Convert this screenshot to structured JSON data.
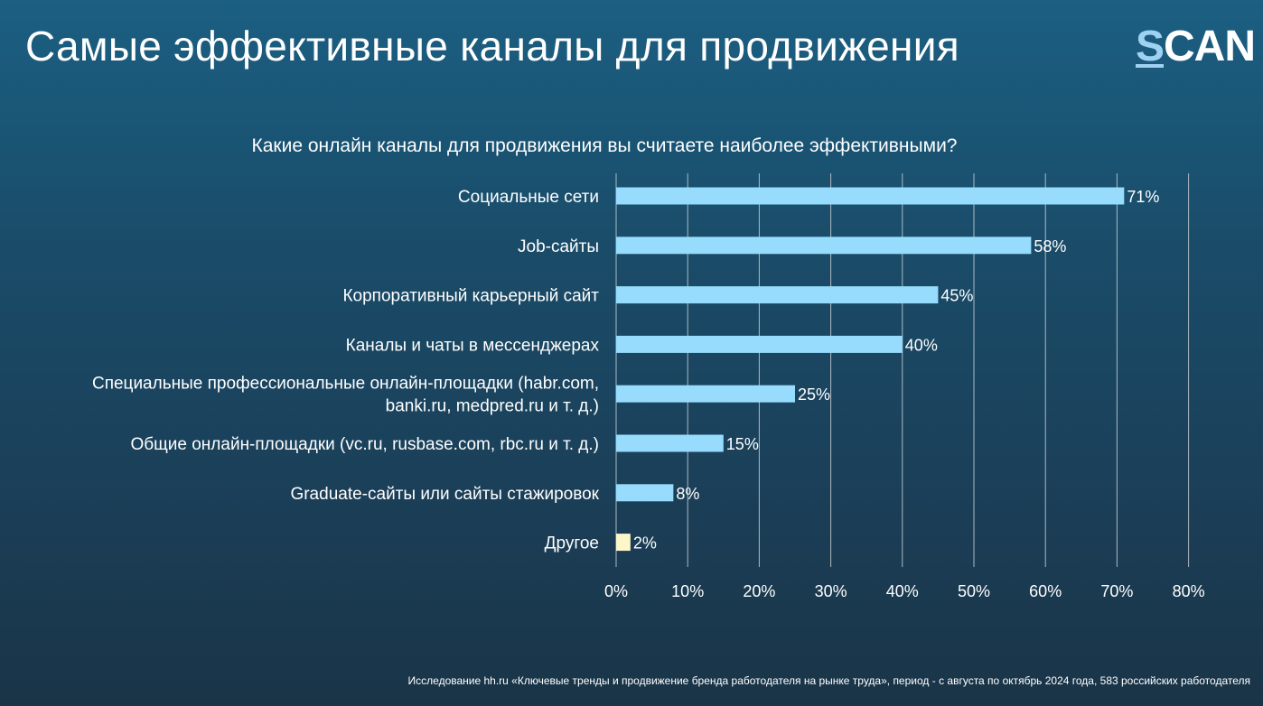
{
  "header": {
    "title": "Самые эффективные каналы для продвижения",
    "logo_first": "S",
    "logo_rest": "CAN"
  },
  "chart_data": {
    "type": "bar",
    "orientation": "horizontal",
    "title": "Какие онлайн каналы для продвижения вы считаете наиболее эффективными?",
    "categories": [
      [
        "Социальные сети"
      ],
      [
        "Job-сайты"
      ],
      [
        "Корпоративный карьерный сайт"
      ],
      [
        "Каналы и чаты в мессенджерах"
      ],
      [
        "Специальные профессиональные онлайн-площадки (habr.com,",
        "banki.ru, medpred.ru и т. д.)"
      ],
      [
        "Общие онлайн-площадки (vc.ru, rusbase.com, rbc.ru и т. д.)"
      ],
      [
        "Graduate-сайты или сайты стажировок"
      ],
      [
        "Другое"
      ]
    ],
    "values": [
      71,
      58,
      45,
      40,
      25,
      15,
      8,
      2
    ],
    "value_labels": [
      "71%",
      "58%",
      "45%",
      "40%",
      "25%",
      "15%",
      "8%",
      "2%"
    ],
    "xlim": [
      0,
      80
    ],
    "ticks": [
      0,
      10,
      20,
      30,
      40,
      50,
      60,
      70,
      80
    ],
    "tick_labels": [
      "0%",
      "10%",
      "20%",
      "30%",
      "40%",
      "50%",
      "60%",
      "70%",
      "80%"
    ],
    "grid": true,
    "colors": {
      "bar": "#97dcfd",
      "bar_other": "#fdf6c8",
      "grid": "#aeb9c2"
    }
  },
  "footer": {
    "source": "Исследование hh.ru «Ключевые тренды и продвижение бренда работодателя на рынке труда», период - с августа по октябрь 2024 года, 583 российских работодателя"
  }
}
